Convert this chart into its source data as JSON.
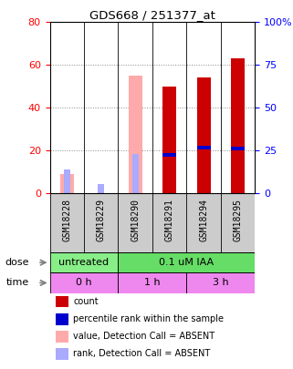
{
  "title": "GDS668 / 251377_at",
  "samples": [
    "GSM18228",
    "GSM18229",
    "GSM18290",
    "GSM18291",
    "GSM18294",
    "GSM18295"
  ],
  "count_values": [
    0,
    0,
    0,
    50,
    54,
    63
  ],
  "rank_values": [
    0,
    0,
    0,
    18,
    21.5,
    21
  ],
  "absent_value_values": [
    9,
    0,
    55,
    0,
    0,
    0
  ],
  "absent_rank_values": [
    11,
    4.5,
    18.5,
    0,
    0,
    0
  ],
  "count_color": "#cc0000",
  "rank_color": "#0000cc",
  "absent_value_color": "#ffaaaa",
  "absent_rank_color": "#aaaaff",
  "ylim_left": [
    0,
    80
  ],
  "ylim_right": [
    0,
    100
  ],
  "yticks_left": [
    0,
    20,
    40,
    60,
    80
  ],
  "yticks_right": [
    0,
    25,
    50,
    75,
    100
  ],
  "yticklabels_right": [
    "0",
    "25",
    "50",
    "75",
    "100%"
  ],
  "dose_groups": [
    {
      "label": "untreated",
      "start": 0,
      "end": 2,
      "color": "#88ee88"
    },
    {
      "label": "0.1 uM IAA",
      "start": 2,
      "end": 6,
      "color": "#66dd66"
    }
  ],
  "time_groups": [
    {
      "label": "0 h",
      "start": 0,
      "end": 2,
      "color": "#ee88ee"
    },
    {
      "label": "1 h",
      "start": 2,
      "end": 4,
      "color": "#ee88ee"
    },
    {
      "label": "3 h",
      "start": 4,
      "end": 6,
      "color": "#ee88ee"
    }
  ],
  "legend_items": [
    {
      "label": "count",
      "color": "#cc0000"
    },
    {
      "label": "percentile rank within the sample",
      "color": "#0000cc"
    },
    {
      "label": "value, Detection Call = ABSENT",
      "color": "#ffaaaa"
    },
    {
      "label": "rank, Detection Call = ABSENT",
      "color": "#aaaaff"
    }
  ],
  "bar_width": 0.4,
  "background_color": "#ffffff",
  "plot_bg_color": "#ffffff",
  "grid_color": "#888888",
  "label_area_color": "#cccccc",
  "n_samples": 6
}
